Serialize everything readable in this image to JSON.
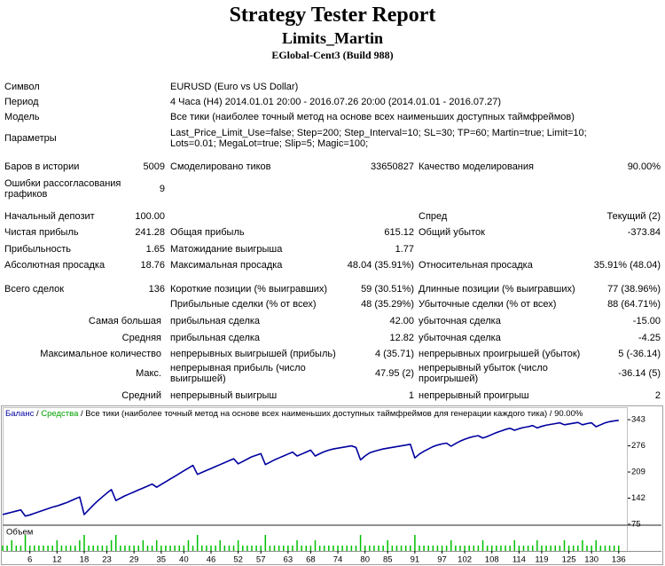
{
  "header": {
    "title": "Strategy Tester Report",
    "name": "Limits_Martin",
    "server": "EGlobal-Cent3 (Build 988)"
  },
  "report": {
    "rows": [
      [
        "Символ",
        "EURUSD (Euro vs US Dollar)"
      ],
      [
        "Период",
        "4 Часа (H4) 2014.01.01 20:00 - 2016.07.26 20:00 (2014.01.01 - 2016.07.27)"
      ],
      [
        "Модель",
        "Все тики (наиболее точный метод на основе всех наименьших доступных таймфреймов)"
      ],
      [
        "Параметры",
        "Last_Price_Limit_Use=false; Step=200; Step_Interval=10; SL=30; TP=60; Martin=true; Limit=10; Lots=0.01; MegaLot=true; Slip=5; Magic=100;"
      ],
      [
        "Баров в истории",
        "5009",
        "Смоделировано тиков",
        "33650827",
        "Качество моделирования",
        "90.00%"
      ],
      [
        "Ошибки рассогласования графиков",
        "9"
      ],
      [
        "Начальный депозит",
        "100.00",
        "Спред",
        "Текущий (2)"
      ],
      [
        "Чистая прибыль",
        "241.28",
        "Общая прибыль",
        "615.12",
        "Общий убыток",
        "-373.84"
      ],
      [
        "Прибыльность",
        "1.65",
        "Матожидание выигрыша",
        "1.77"
      ],
      [
        "Абсолютная просадка",
        "18.76",
        "Максимальная просадка",
        "48.04 (35.91%)",
        "Относительная просадка",
        "35.91% (48.04)"
      ],
      [
        "Всего сделок",
        "136",
        "Короткие позиции (% выигравших)",
        "59 (30.51%)",
        "Длинные позиции (% выигравших)",
        "77 (38.96%)"
      ],
      [
        "Прибыльные сделки (% от всех)",
        "48 (35.29%)",
        "Убыточные сделки (% от всех)",
        "88 (64.71%)"
      ],
      [
        "Самая большая",
        "прибыльная сделка",
        "42.00",
        "убыточная сделка",
        "-15.00"
      ],
      [
        "Средняя",
        "прибыльная сделка",
        "12.82",
        "убыточная сделка",
        "-4.25"
      ],
      [
        "Максимальное количество",
        "непрерывных выигрышей (прибыль)",
        "4 (35.71)",
        "непрерывных проигрышей (убыток)",
        "5 (-36.14)"
      ],
      [
        "Макс.",
        "непрерывная прибыль (число выигрышей)",
        "47.95 (2)",
        "непрерывный убыток (число проигрышей)",
        "-36.14 (5)"
      ],
      [
        "Средний",
        "непрерывный выигрыш",
        "1",
        "непрерывный проигрыш",
        "2"
      ]
    ]
  },
  "chart_data": {
    "type": "line",
    "legend_separator": " / ",
    "equity_label": {
      "name": "Средства",
      "color": "#00a000"
    },
    "legend_notes": [
      "Все тики (наиболее точный метод на основе всех наименьших доступных таймфреймов для генерации каждого тика)",
      "90.00%"
    ],
    "x": [
      0,
      1,
      2,
      3,
      4,
      5,
      6,
      7,
      8,
      9,
      10,
      11,
      12,
      13,
      14,
      15,
      16,
      17,
      18,
      19,
      20,
      21,
      22,
      23,
      24,
      25,
      26,
      27,
      28,
      29,
      30,
      31,
      32,
      33,
      34,
      35,
      36,
      37,
      38,
      39,
      40,
      41,
      42,
      43,
      44,
      45,
      46,
      47,
      48,
      49,
      50,
      51,
      52,
      53,
      54,
      55,
      56,
      57,
      58,
      59,
      60,
      61,
      62,
      63,
      64,
      65,
      66,
      67,
      68,
      69,
      70,
      71,
      72,
      73,
      74,
      75,
      76,
      77,
      78,
      79,
      80,
      81,
      82,
      83,
      84,
      85,
      86,
      87,
      88,
      89,
      90,
      91,
      92,
      93,
      94,
      95,
      96,
      97,
      98,
      99,
      100,
      101,
      102,
      103,
      104,
      105,
      106,
      107,
      108,
      109,
      110,
      111,
      112,
      113,
      114,
      115,
      116,
      117,
      118,
      119,
      120,
      121,
      122,
      123,
      124,
      125,
      126,
      127,
      128,
      129,
      130,
      131,
      132,
      133,
      134,
      135,
      136
    ],
    "series": [
      {
        "name": "Баланс",
        "color": "#0000a0",
        "values": [
          100,
          103,
          106,
          109,
          112,
          96,
          99,
          103,
          107,
          111,
          115,
          119,
          122,
          126,
          130,
          135,
          140,
          145,
          100,
          112,
          124,
          135,
          145,
          155,
          164,
          136,
          142,
          148,
          153,
          158,
          163,
          168,
          173,
          178,
          170,
          177,
          184,
          191,
          198,
          205,
          212,
          219,
          226,
          203,
          208,
          213,
          218,
          223,
          228,
          233,
          238,
          243,
          230,
          236,
          242,
          248,
          252,
          256,
          228,
          234,
          240,
          245,
          250,
          255,
          260,
          250,
          255,
          260,
          265,
          250,
          256,
          261,
          265,
          268,
          270,
          272,
          274,
          276,
          272,
          240,
          250,
          258,
          262,
          265,
          268,
          270,
          272,
          274,
          276,
          278,
          280,
          245,
          255,
          262,
          268,
          274,
          278,
          281,
          283,
          275,
          282,
          288,
          293,
          297,
          300,
          302,
          296,
          300,
          305,
          310,
          314,
          318,
          321,
          316,
          320,
          323,
          325,
          328,
          322,
          326,
          329,
          331,
          333,
          335,
          330,
          332,
          334,
          336,
          330,
          333,
          335,
          325,
          330,
          335,
          338,
          340,
          341.28
        ]
      }
    ],
    "volume": {
      "name": "Объем",
      "color": "#00c000",
      "values": [
        1,
        1,
        2,
        1,
        1,
        3,
        1,
        1,
        1,
        1,
        1,
        1,
        2,
        1,
        1,
        1,
        1,
        2,
        3,
        1,
        1,
        1,
        1,
        1,
        2,
        3,
        1,
        1,
        1,
        1,
        1,
        2,
        1,
        1,
        2,
        1,
        1,
        1,
        1,
        1,
        1,
        2,
        1,
        3,
        1,
        1,
        1,
        1,
        2,
        1,
        1,
        1,
        2,
        1,
        1,
        1,
        1,
        1,
        3,
        1,
        1,
        1,
        1,
        1,
        1,
        2,
        1,
        1,
        1,
        2,
        1,
        1,
        1,
        1,
        1,
        1,
        1,
        1,
        1,
        3,
        1,
        1,
        1,
        1,
        1,
        2,
        1,
        1,
        1,
        1,
        1,
        3,
        1,
        1,
        1,
        1,
        1,
        1,
        1,
        2,
        1,
        1,
        1,
        1,
        1,
        1,
        2,
        1,
        1,
        1,
        1,
        1,
        1,
        2,
        1,
        1,
        1,
        1,
        2,
        1,
        1,
        1,
        1,
        1,
        2,
        1,
        1,
        1,
        2,
        1,
        1,
        2,
        1,
        1,
        1,
        1,
        1
      ]
    },
    "xlim": [
      0,
      138
    ],
    "ylim": [
      75,
      375
    ],
    "yticks": [
      75,
      142,
      209,
      276,
      343
    ],
    "xticks": [
      6,
      12,
      18,
      23,
      29,
      35,
      40,
      46,
      52,
      57,
      63,
      68,
      74,
      80,
      85,
      91,
      97,
      102,
      108,
      114,
      119,
      125,
      130,
      136
    ]
  }
}
